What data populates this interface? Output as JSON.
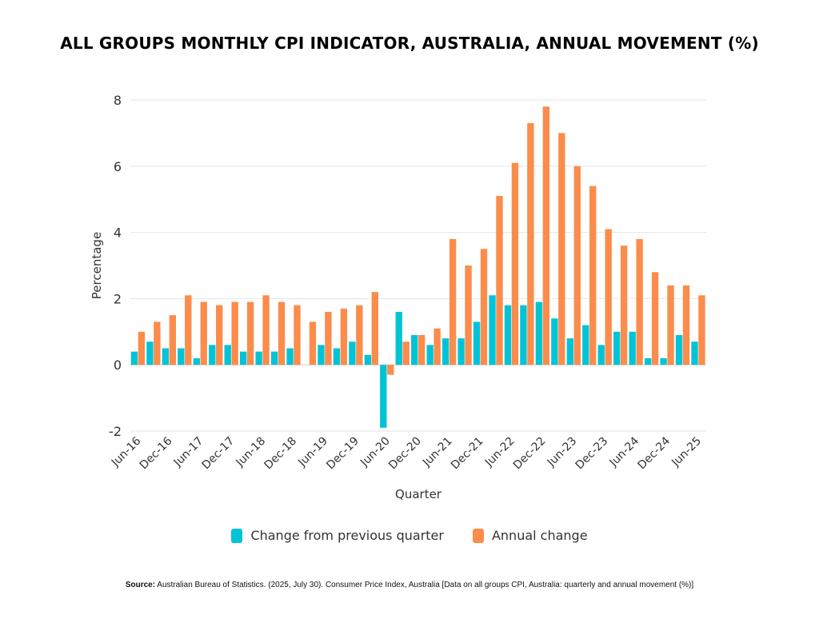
{
  "colors": {
    "quarterly": "#00c4d6",
    "annual": "#fb8c4b",
    "grid": "#e6e6e6"
  },
  "source": {
    "label": "Source:",
    "text": "Australian Bureau of Statistics. (2025, July 30). Consumer Price Index, Australia [Data on all groups CPI, Australia: quarterly and annual movement (%)]"
  },
  "chart_data": {
    "type": "bar",
    "title": "ALL GROUPS MONTHLY CPI INDICATOR, AUSTRALIA, ANNUAL MOVEMENT (%)",
    "xlabel": "Quarter",
    "ylabel": "Percentage",
    "ylim": [
      -2,
      8
    ],
    "yticks": [
      -2,
      0,
      2,
      4,
      6,
      8
    ],
    "grid": true,
    "legend_position": "bottom",
    "categories": [
      "Jun-16",
      "Sep-16",
      "Dec-16",
      "Mar-17",
      "Jun-17",
      "Sep-17",
      "Dec-17",
      "Mar-18",
      "Jun-18",
      "Sep-18",
      "Dec-18",
      "Mar-19",
      "Jun-19",
      "Sep-19",
      "Dec-19",
      "Mar-20",
      "Jun-20",
      "Sep-20",
      "Dec-20",
      "Mar-21",
      "Jun-21",
      "Sep-21",
      "Dec-21",
      "Mar-22",
      "Jun-22",
      "Sep-22",
      "Dec-22",
      "Mar-23",
      "Jun-23",
      "Sep-23",
      "Dec-23",
      "Mar-24",
      "Jun-24",
      "Sep-24",
      "Dec-24",
      "Mar-25",
      "Jun-25"
    ],
    "xtick_labels": [
      "Jun-16",
      "Dec-16",
      "Jun-17",
      "Dec-17",
      "Jun-18",
      "Dec-18",
      "Jun-19",
      "Dec-19",
      "Jun-20",
      "Dec-20",
      "Jun-21",
      "Dec-21",
      "Jun-22",
      "Dec-22",
      "Jun-23",
      "Dec-23",
      "Jun-24",
      "Dec-24",
      "Jun-25"
    ],
    "series": [
      {
        "name": "Change from previous quarter",
        "values": [
          0.4,
          0.7,
          0.5,
          0.5,
          0.2,
          0.6,
          0.6,
          0.4,
          0.4,
          0.4,
          0.5,
          0.0,
          0.6,
          0.5,
          0.7,
          0.3,
          -1.9,
          1.6,
          0.9,
          0.6,
          0.8,
          0.8,
          1.3,
          2.1,
          1.8,
          1.8,
          1.9,
          1.4,
          0.8,
          1.2,
          0.6,
          1.0,
          1.0,
          0.2,
          0.2,
          0.9,
          0.7
        ]
      },
      {
        "name": "Annual change",
        "values": [
          1.0,
          1.3,
          1.5,
          2.1,
          1.9,
          1.8,
          1.9,
          1.9,
          2.1,
          1.9,
          1.8,
          1.3,
          1.6,
          1.7,
          1.8,
          2.2,
          -0.3,
          0.7,
          0.9,
          1.1,
          3.8,
          3.0,
          3.5,
          5.1,
          6.1,
          7.3,
          7.8,
          7.0,
          6.0,
          5.4,
          4.1,
          3.6,
          3.8,
          2.8,
          2.4,
          2.4,
          2.1
        ]
      }
    ]
  }
}
